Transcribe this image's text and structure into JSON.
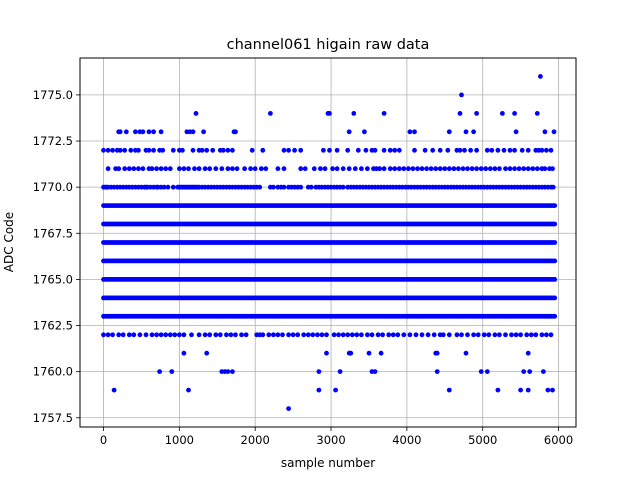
{
  "chart_data": {
    "type": "scatter",
    "title": "channel061 higain raw data",
    "xlabel": "sample number",
    "ylabel": "ADC Code",
    "xlim": [
      -310,
      6230
    ],
    "ylim": [
      1757.0,
      1777.0
    ],
    "xticks": [
      0,
      1000,
      2000,
      3000,
      4000,
      5000,
      6000
    ],
    "xtick_labels": [
      "0",
      "1000",
      "2000",
      "3000",
      "4000",
      "5000",
      "6000"
    ],
    "yticks": [
      1757.5,
      1760.0,
      1762.5,
      1765.0,
      1767.5,
      1770.0,
      1772.5,
      1775.0
    ],
    "ytick_labels": [
      "1757.5",
      "1760.0",
      "1762.5",
      "1765.0",
      "1767.5",
      "1770.0",
      "1772.5",
      "1775.0"
    ],
    "grid": true,
    "marker_color": "#0000ff",
    "dense_range": {
      "x": [
        0,
        5950
      ],
      "note": "every sample has a point; dense bands at codes 1762–1770"
    },
    "dense_levels": [
      1763,
      1764,
      1765,
      1766,
      1767,
      1768,
      1769
    ],
    "sparse_levels": {
      "1770": [
        0,
        20,
        40,
        60,
        100,
        140,
        180,
        220,
        260,
        300,
        340,
        380,
        420,
        460,
        500,
        540,
        560,
        580,
        620,
        660,
        700,
        720,
        760,
        800,
        850,
        920,
        980,
        1000,
        1020,
        1040,
        1060,
        1080,
        1100,
        1120,
        1140,
        1160,
        1180,
        1200,
        1220,
        1240,
        1260,
        1300,
        1340,
        1380,
        1420,
        1460,
        1500,
        1540,
        1580,
        1620,
        1660,
        1700,
        1740,
        1780,
        1820,
        1860,
        1900,
        1940,
        1980,
        2020,
        2060,
        2200,
        2240,
        2300,
        2340,
        2380,
        2440,
        2480,
        2520,
        2560,
        2600,
        2700,
        2740,
        2800,
        2840,
        2880,
        2920,
        2960,
        3000,
        3040,
        3080,
        3120,
        3160,
        3220,
        3260,
        3300,
        3340,
        3380,
        3420,
        3460,
        3500,
        3540,
        3580,
        3620,
        3660,
        3700,
        3740,
        3780,
        3820,
        3860,
        3900,
        3940,
        3980,
        4020,
        4060,
        4100,
        4140,
        4180,
        4220,
        4260,
        4300,
        4340,
        4380,
        4420,
        4460,
        4500,
        4540,
        4580,
        4620,
        4660,
        4700,
        4740,
        4780,
        4820,
        4860,
        4900,
        4940,
        4980,
        5020,
        5060,
        5100,
        5140,
        5180,
        5220,
        5260,
        5300,
        5340,
        5380,
        5420,
        5460,
        5500,
        5540,
        5580,
        5620,
        5660,
        5700,
        5740,
        5780,
        5820,
        5860,
        5900,
        5930
      ],
      "1771": [
        60,
        160,
        200,
        280,
        340,
        400,
        460,
        520,
        600,
        640,
        700,
        760,
        820,
        880,
        1000,
        1060,
        1120,
        1200,
        1260,
        1340,
        1400,
        1480,
        1560,
        1640,
        1700,
        1760,
        1860,
        1940,
        2000,
        2080,
        2140,
        2300,
        2380,
        2600,
        2660,
        2780,
        2860,
        2920,
        3020,
        3080,
        3160,
        3240,
        3320,
        3400,
        3480,
        3560,
        3600,
        3640,
        3700,
        3780,
        3840,
        3900,
        3960,
        4020,
        4080,
        4140,
        4200,
        4260,
        4320,
        4380,
        4440,
        4500,
        4560,
        4620,
        4680,
        4740,
        4800,
        4860,
        4920,
        4980,
        5040,
        5100,
        5160,
        5220,
        5300,
        5360,
        5420,
        5480,
        5540,
        5600,
        5660,
        5720,
        5780,
        5820,
        5880,
        5920
      ],
      "1772": [
        0,
        60,
        120,
        180,
        220,
        280,
        360,
        420,
        460,
        560,
        600,
        660,
        740,
        780,
        920,
        1000,
        1040,
        1180,
        1260,
        1300,
        1360,
        1440,
        1540,
        1580,
        1640,
        1700,
        1960,
        2100,
        2380,
        2440,
        2520,
        2600,
        2900,
        2980,
        3080,
        3220,
        3360,
        3460,
        3540,
        3580,
        3700,
        3780,
        3840,
        3900,
        4100,
        4240,
        4340,
        4440,
        4540,
        4660,
        4700,
        4760,
        4840,
        4920,
        5060,
        5120,
        5200,
        5280,
        5360,
        5420,
        5520,
        5600,
        5700,
        5740,
        5780,
        5840,
        5900
      ],
      "1773": [
        200,
        220,
        300,
        420,
        480,
        520,
        600,
        660,
        760,
        1100,
        1140,
        1180,
        1320,
        1720,
        1740,
        3240,
        3440,
        4040,
        4100,
        4560,
        4780,
        4880,
        5440,
        5820,
        5940
      ],
      "1774": [
        1220,
        2200,
        2960,
        2980,
        3300,
        3700,
        4700,
        4920,
        5260,
        5420,
        5720
      ],
      "1775": [
        4720
      ],
      "1776": [
        5760
      ],
      "1762": [
        0,
        60,
        120,
        200,
        260,
        340,
        400,
        480,
        560,
        640,
        700,
        760,
        820,
        880,
        940,
        1000,
        1060,
        1160,
        1260,
        1340,
        1400,
        1480,
        1540,
        1620,
        1680,
        1740,
        1820,
        1880,
        2020,
        2060,
        2100,
        2180,
        2240,
        2300,
        2360,
        2440,
        2500,
        2560,
        2640,
        2700,
        2760,
        2820,
        2880,
        2940,
        3040,
        3100,
        3160,
        3220,
        3280,
        3340,
        3400,
        3480,
        3540,
        3620,
        3680,
        3760,
        3820,
        3880,
        3960,
        4040,
        4120,
        4200,
        4280,
        4360,
        4440,
        4480,
        4560,
        4660,
        4720,
        4800,
        4880,
        4940,
        5020,
        5080,
        5160,
        5220,
        5300,
        5380,
        5440,
        5500,
        5580,
        5640,
        5700,
        5780,
        5840,
        5900
      ],
      "1761": [
        1060,
        1360,
        2940,
        3240,
        3260,
        3500,
        3660,
        4380,
        4400,
        4780,
        5600
      ],
      "1760": [
        740,
        900,
        1560,
        1600,
        1640,
        1700,
        2840,
        3120,
        3540,
        3580,
        4400,
        4980,
        5060,
        5540,
        5620,
        5800
      ],
      "1759": [
        140,
        1120,
        2840,
        3060,
        4560,
        5200,
        5500,
        5600,
        5860,
        5920
      ],
      "1758": [
        2440
      ]
    }
  }
}
